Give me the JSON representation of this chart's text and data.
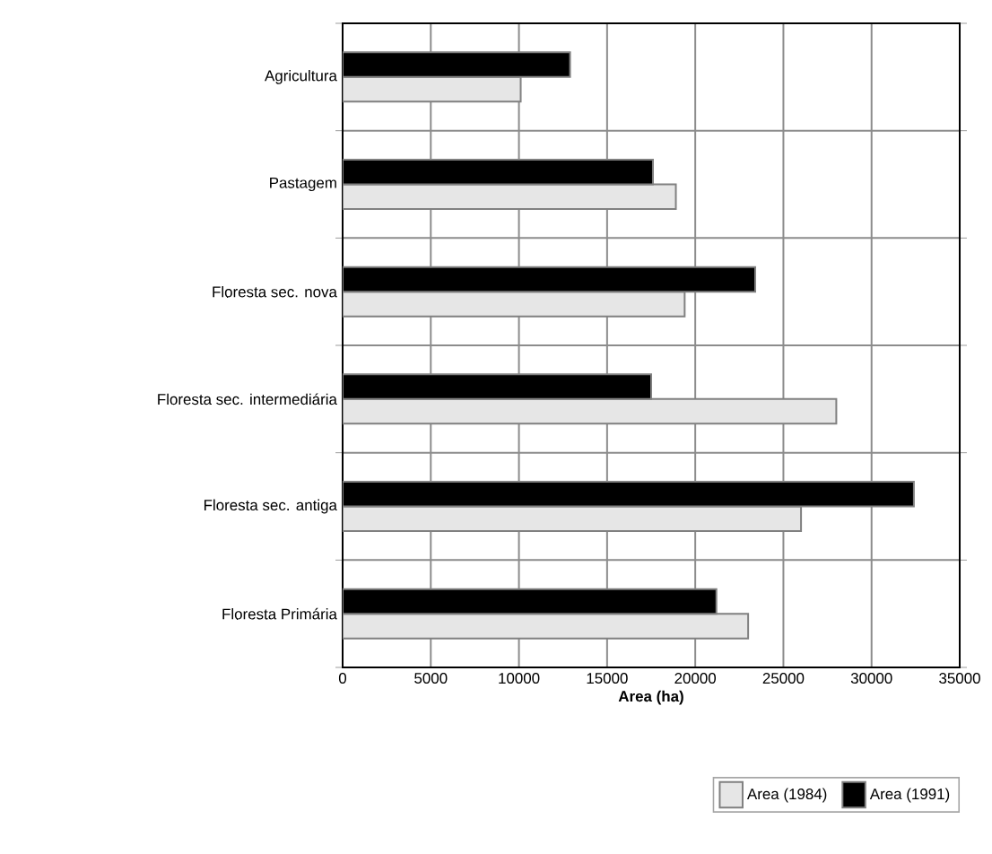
{
  "chart_data": {
    "type": "bar",
    "orientation": "horizontal",
    "xlabel": "Area (ha)",
    "categories": [
      "Agricultura",
      "Pastagem",
      "Floresta sec. nova",
      "Floresta sec. intermediária",
      "Floresta sec. antiga",
      "Floresta Primária"
    ],
    "series": [
      {
        "name": "Area (1984)",
        "color": "#e6e6e6",
        "values": [
          10100,
          18900,
          19400,
          28000,
          26000,
          23000
        ]
      },
      {
        "name": "Area (1991)",
        "color": "#000000",
        "values": [
          12900,
          17600,
          23400,
          17500,
          32400,
          21200
        ]
      }
    ],
    "xlim": [
      0,
      35000
    ],
    "xticks": [
      0,
      5000,
      10000,
      15000,
      20000,
      25000,
      30000,
      35000
    ],
    "grid": true,
    "legend": "bottom"
  }
}
